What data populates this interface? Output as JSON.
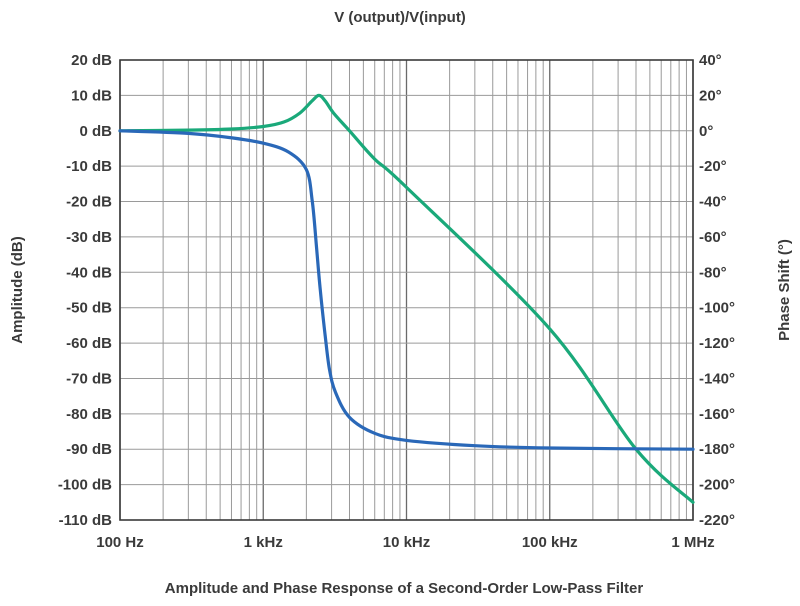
{
  "chart_data": {
    "type": "line",
    "title": "V (output)/V(input)",
    "caption": "Amplitude and Phase Response of a Second-Order Low-Pass Filter",
    "xlabel": "",
    "x_scale": "log",
    "xlim": [
      100,
      1000000
    ],
    "x_ticks": [
      {
        "value": 100,
        "label": "100 Hz"
      },
      {
        "value": 1000,
        "label": "1 kHz"
      },
      {
        "value": 10000,
        "label": "10 kHz"
      },
      {
        "value": 100000,
        "label": "100 kHz"
      },
      {
        "value": 1000000,
        "label": "1 MHz"
      }
    ],
    "y_left": {
      "label": "Amplitude (dB)",
      "lim": [
        -110,
        20
      ],
      "ticks": [
        {
          "value": 20,
          "label": "20 dB"
        },
        {
          "value": 10,
          "label": "10 dB"
        },
        {
          "value": 0,
          "label": "0 dB"
        },
        {
          "value": -10,
          "label": "-10 dB"
        },
        {
          "value": -20,
          "label": "-20 dB"
        },
        {
          "value": -30,
          "label": "-30 dB"
        },
        {
          "value": -40,
          "label": "-40 dB"
        },
        {
          "value": -50,
          "label": "-50 dB"
        },
        {
          "value": -60,
          "label": "-60 dB"
        },
        {
          "value": -70,
          "label": "-70 dB"
        },
        {
          "value": -80,
          "label": "-80 dB"
        },
        {
          "value": -90,
          "label": "-90 dB"
        },
        {
          "value": -100,
          "label": "-100 dB"
        },
        {
          "value": -110,
          "label": "-110 dB"
        }
      ]
    },
    "y_right": {
      "label": "Phase Shift (°)",
      "lim": [
        -220,
        40
      ],
      "ticks": [
        {
          "value": 40,
          "label": "40°"
        },
        {
          "value": 20,
          "label": "20°"
        },
        {
          "value": 0,
          "label": "0°"
        },
        {
          "value": -20,
          "label": "-20°"
        },
        {
          "value": -40,
          "label": "-40°"
        },
        {
          "value": -60,
          "label": "-60°"
        },
        {
          "value": -80,
          "label": "-80°"
        },
        {
          "value": -100,
          "label": "-100°"
        },
        {
          "value": -120,
          "label": "-120°"
        },
        {
          "value": -140,
          "label": "-140°"
        },
        {
          "value": -160,
          "label": "-160°"
        },
        {
          "value": -180,
          "label": "-180°"
        },
        {
          "value": -200,
          "label": "-200°"
        },
        {
          "value": -220,
          "label": "-220°"
        }
      ]
    },
    "grid": true,
    "series": [
      {
        "axis": "left",
        "color": "#1aa97a",
        "points": [
          [
            100,
            0
          ],
          [
            300,
            0.2
          ],
          [
            600,
            0.5
          ],
          [
            1000,
            1.2
          ],
          [
            1400,
            2.5
          ],
          [
            1800,
            5
          ],
          [
            2200,
            8.5
          ],
          [
            2450,
            10
          ],
          [
            2700,
            8.5
          ],
          [
            3100,
            5
          ],
          [
            4000,
            0
          ],
          [
            6000,
            -8
          ],
          [
            10000,
            -16
          ],
          [
            100000,
            -56
          ],
          [
            400000,
            -90
          ],
          [
            1000000,
            -105
          ]
        ]
      },
      {
        "axis": "right",
        "color": "#2a68b8",
        "points": [
          [
            100,
            0
          ],
          [
            300,
            -1.5
          ],
          [
            600,
            -4
          ],
          [
            1000,
            -7
          ],
          [
            1500,
            -12
          ],
          [
            2000,
            -22
          ],
          [
            2200,
            -40
          ],
          [
            2350,
            -65
          ],
          [
            2500,
            -90
          ],
          [
            2700,
            -115
          ],
          [
            2900,
            -135
          ],
          [
            3200,
            -148
          ],
          [
            4000,
            -162
          ],
          [
            6000,
            -171
          ],
          [
            10000,
            -175
          ],
          [
            30000,
            -178
          ],
          [
            100000,
            -179.3
          ],
          [
            1000000,
            -180
          ]
        ]
      }
    ]
  }
}
